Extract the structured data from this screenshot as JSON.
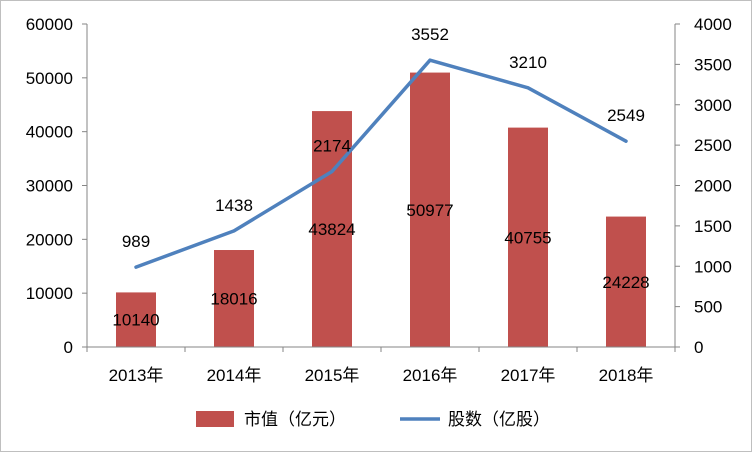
{
  "chart_data": {
    "type": "bar+line",
    "categories": [
      "2013年",
      "2014年",
      "2015年",
      "2016年",
      "2017年",
      "2018年"
    ],
    "series": [
      {
        "name": "市值（亿元）",
        "type": "bar",
        "axis": "left",
        "color": "#C0504D",
        "values": [
          10140,
          18016,
          43824,
          50977,
          40755,
          24228
        ],
        "labels": [
          "10140",
          "18016",
          "43824",
          "50977",
          "40755",
          "24228"
        ]
      },
      {
        "name": "股数（亿股）",
        "type": "line",
        "axis": "right",
        "color": "#4F81BD",
        "values": [
          989,
          1438,
          2174,
          3552,
          3210,
          2549
        ],
        "labels": [
          "989",
          "1438",
          "2174",
          "3552",
          "3210",
          "2549"
        ]
      }
    ],
    "y_left": {
      "min": 0,
      "max": 60000,
      "step": 10000,
      "ticks": [
        "0",
        "10000",
        "20000",
        "30000",
        "40000",
        "50000",
        "60000"
      ]
    },
    "y_right": {
      "min": 0,
      "max": 4000,
      "step": 500,
      "ticks": [
        "0",
        "500",
        "1000",
        "1500",
        "2000",
        "2500",
        "3000",
        "3500",
        "4000"
      ]
    },
    "grid": false,
    "legend": "bottom",
    "title": "",
    "xlabel": "",
    "ylabel": ""
  }
}
